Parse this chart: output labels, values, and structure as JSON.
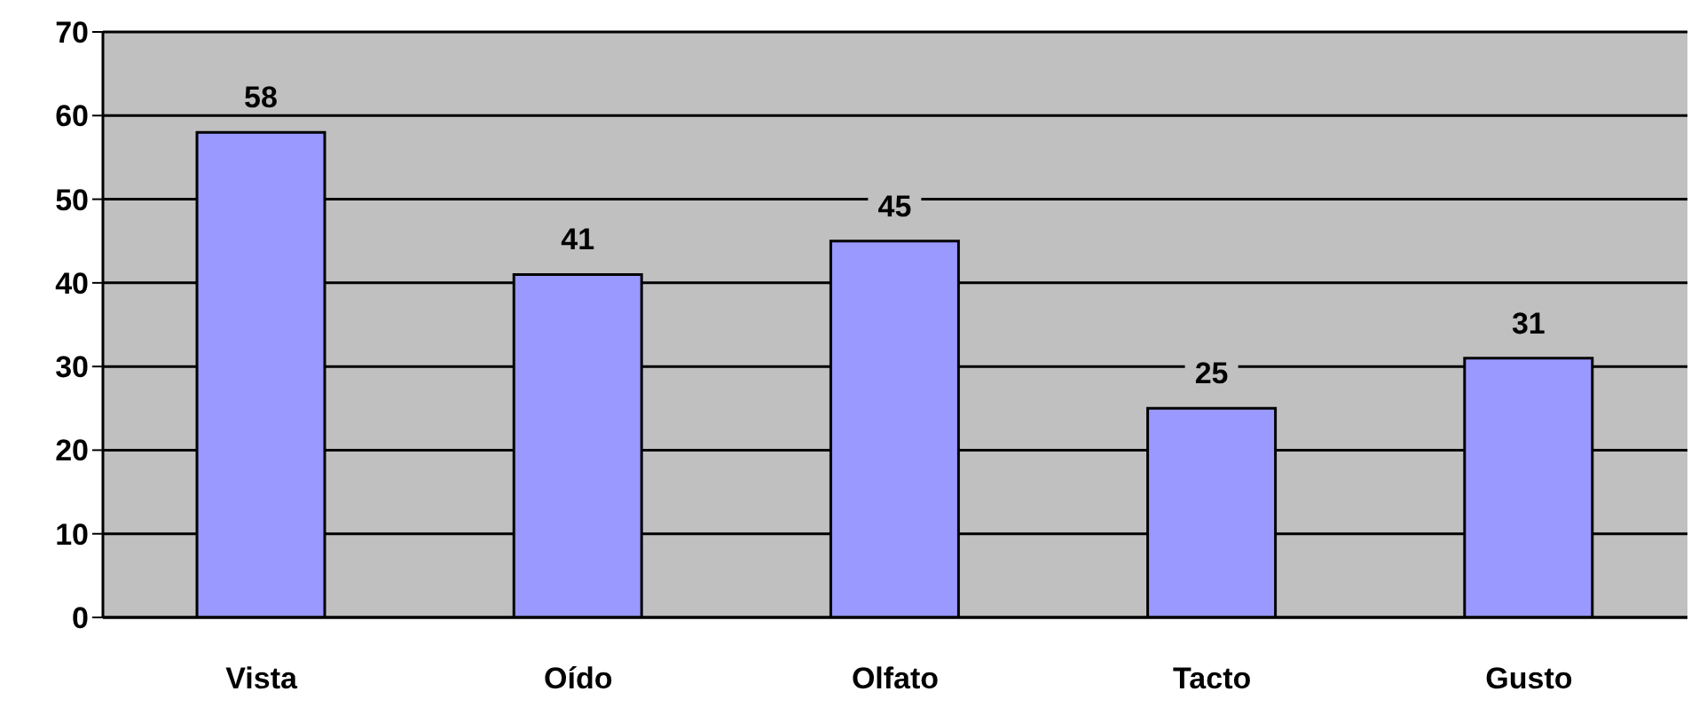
{
  "chart_data": {
    "type": "bar",
    "categories": [
      "Vista",
      "Oído",
      "Olfato",
      "Tacto",
      "Gusto"
    ],
    "values": [
      58,
      41,
      45,
      25,
      31
    ],
    "color": "#9999ff",
    "ylim": [
      0,
      70
    ],
    "yticks": [
      0,
      10,
      20,
      30,
      40,
      50,
      60,
      70
    ],
    "grid": "y",
    "data_labels": true
  }
}
